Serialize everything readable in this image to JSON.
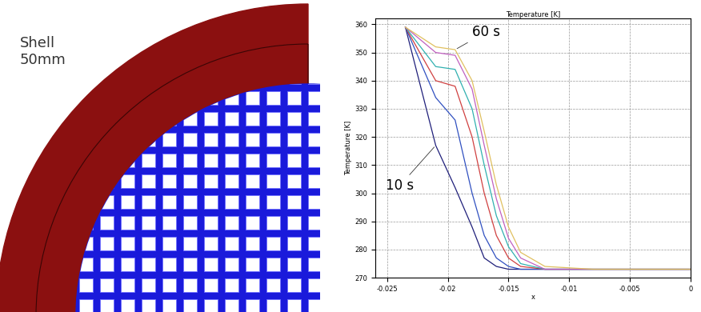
{
  "diagram": {
    "label": "Shell\n50mm"
  },
  "chart_data": {
    "type": "line",
    "title": "Temperature [K]",
    "x_label": "x",
    "y_label": "Temperature [K]",
    "x": [
      -0.0235,
      -0.021,
      -0.0194,
      -0.018,
      -0.017,
      -0.016,
      -0.015,
      -0.014,
      -0.012,
      -0.008,
      0
    ],
    "series": [
      {
        "name": "10 s",
        "color": "#1f1f7a",
        "values": [
          359,
          317,
          302,
          288,
          277,
          274,
          273,
          273,
          273,
          273,
          273
        ]
      },
      {
        "color": "#3050c0",
        "values": [
          359,
          334,
          326,
          300,
          285,
          277,
          274,
          273,
          273,
          273,
          273
        ]
      },
      {
        "color": "#d04040",
        "values": [
          359,
          340,
          338,
          320,
          300,
          285,
          277,
          274,
          273,
          273,
          273
        ]
      },
      {
        "color": "#30b0b0",
        "values": [
          359,
          345,
          344,
          330,
          310,
          292,
          281,
          275,
          273,
          273,
          273
        ]
      },
      {
        "color": "#c060c0",
        "values": [
          359,
          350,
          349,
          337,
          317,
          298,
          284,
          277,
          273,
          273,
          273
        ]
      },
      {
        "name": "60 s",
        "color": "#e0c060",
        "values": [
          359,
          352,
          351,
          340,
          322,
          303,
          288,
          279,
          274,
          273,
          273
        ]
      }
    ],
    "xlim": [
      -0.026,
      0
    ],
    "xticks": [
      -0.025,
      -0.02,
      -0.015,
      -0.01,
      -0.005,
      0
    ],
    "ylim": [
      270,
      362
    ],
    "yticks": [
      270,
      280,
      290,
      300,
      310,
      320,
      330,
      340,
      350,
      360
    ],
    "grid": true
  }
}
